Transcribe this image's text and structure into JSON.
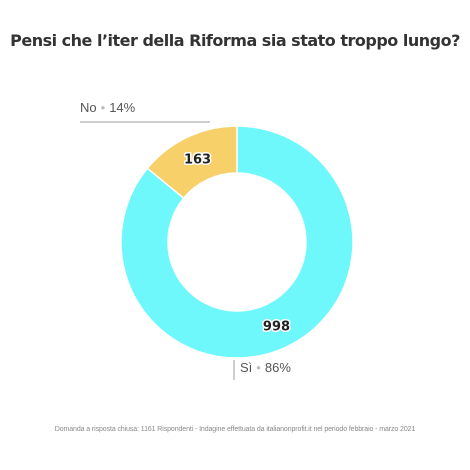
{
  "chart_data": {
    "type": "pie",
    "title": "Pensi che l’iter della Riforma sia stato troppo lungo?",
    "donut": true,
    "slices": [
      {
        "label": "Sì",
        "value": 998,
        "percent_label": "86%",
        "color": "#6ef8fc"
      },
      {
        "label": "No",
        "value": 163,
        "percent_label": "14%",
        "color": "#f8d06a"
      }
    ],
    "footnote": "Domanda a risposta chiusa: 1161 Rispondenti - Indagine effettuata da italianonprofit.it nel periodo febbraio - marzo 2021"
  }
}
